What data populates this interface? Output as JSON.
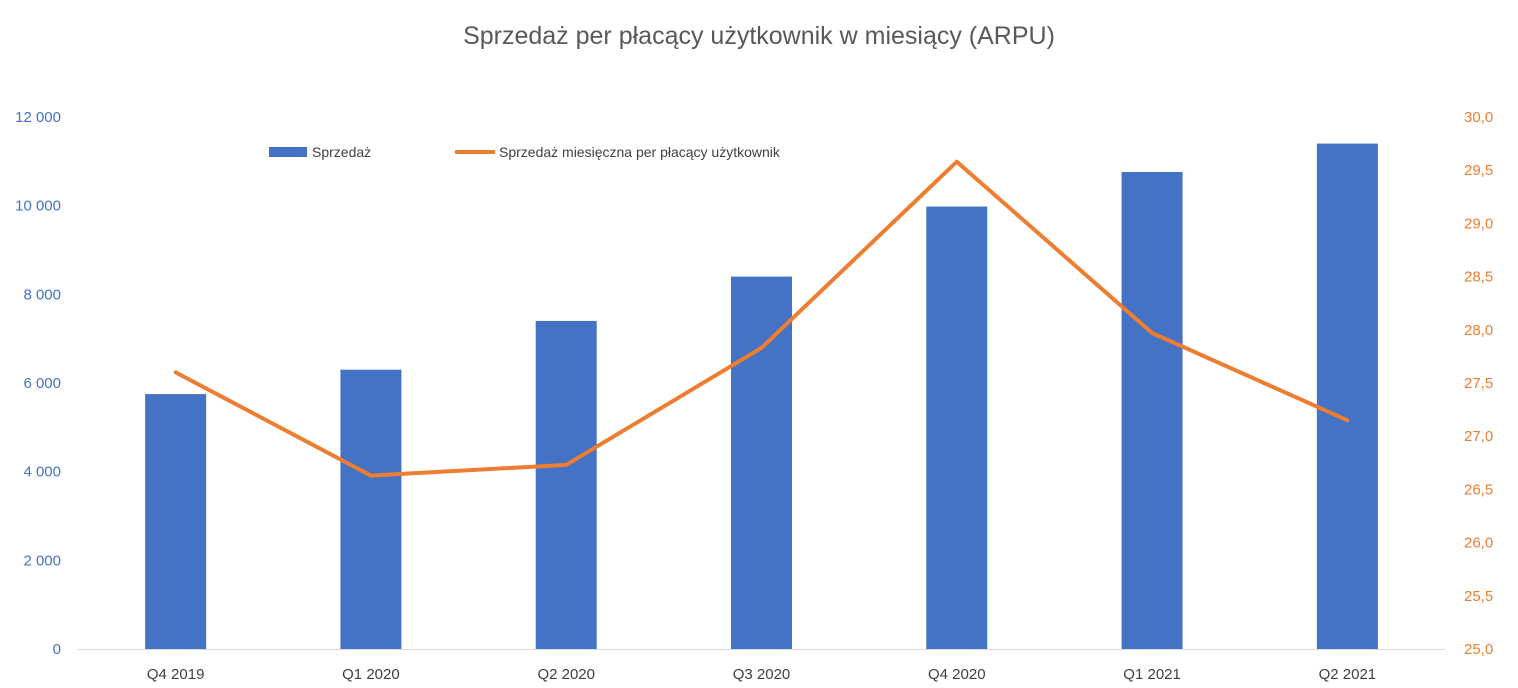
{
  "chart_data": {
    "type": "bar",
    "title": "Sprzedaż per płacący użytkownik w miesiący (ARPU)",
    "categories": [
      "Q4 2019",
      "Q1 2020",
      "Q2 2020",
      "Q3 2020",
      "Q4 2020",
      "Q1 2021",
      "Q2 2021"
    ],
    "series": [
      {
        "name": "Sprzedaż",
        "type": "bar",
        "axis": "left",
        "color": "#4472C4",
        "values": [
          5750,
          6300,
          7400,
          8400,
          9980,
          10760,
          11400
        ]
      },
      {
        "name": "Sprzedaż miesięczna per płacący użytkownik",
        "type": "line",
        "axis": "right",
        "color": "#ED7D31",
        "values": [
          27.6,
          26.63,
          26.73,
          27.83,
          29.58,
          27.97,
          27.15
        ]
      }
    ],
    "y_left": {
      "ylim": [
        0,
        12000
      ],
      "ticks": [
        0,
        2000,
        4000,
        6000,
        8000,
        10000,
        12000
      ],
      "tick_labels": [
        "0",
        "2 000",
        "4 000",
        "6 000",
        "8 000",
        "10 000",
        "12 000"
      ]
    },
    "y_right": {
      "ylim": [
        25.0,
        30.0
      ],
      "ticks": [
        25.0,
        25.5,
        26.0,
        26.5,
        27.0,
        27.5,
        28.0,
        28.5,
        29.0,
        29.5,
        30.0
      ],
      "tick_labels": [
        "25,0",
        "25,5",
        "26,0",
        "26,5",
        "27,0",
        "27,5",
        "28,0",
        "28,5",
        "29,0",
        "29,5",
        "30,0"
      ]
    },
    "grid": false,
    "legend": "top-left"
  }
}
